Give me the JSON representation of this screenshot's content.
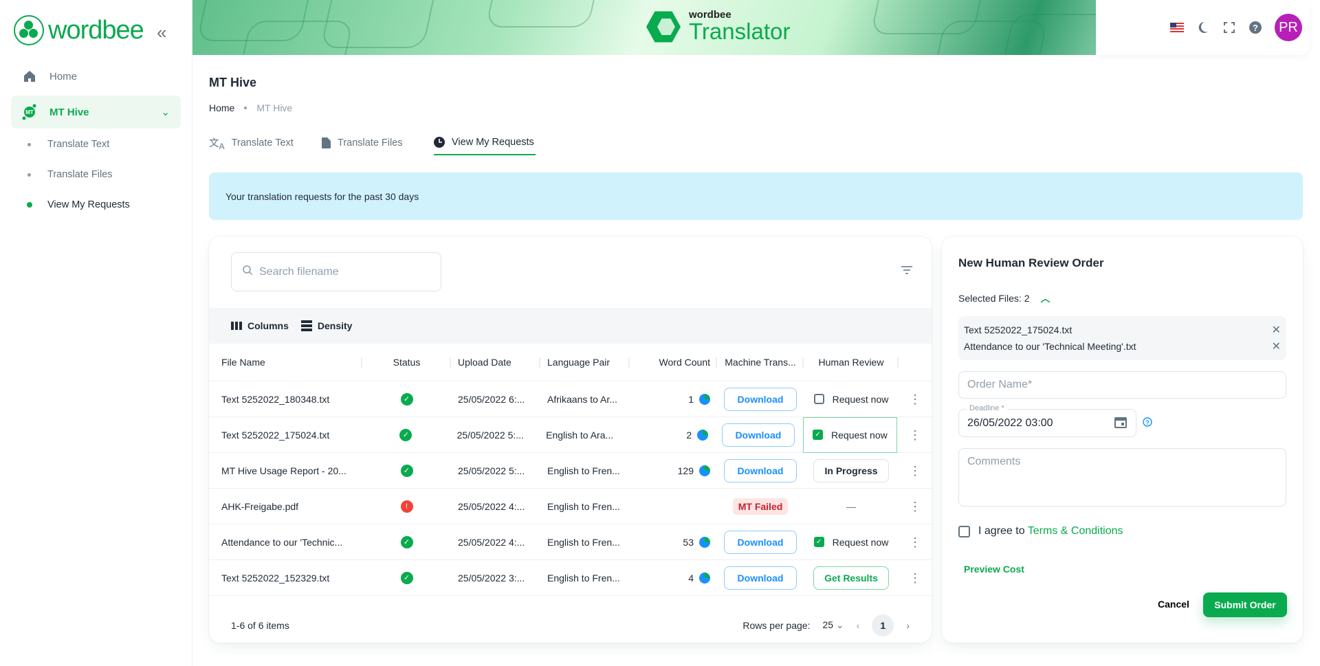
{
  "app": {
    "logo_text": "wordbee",
    "logo_tm": "TM",
    "brand_small": "wordbee",
    "brand_title": "Translator",
    "avatar_initials": "PR",
    "accent": "#0aaa4f"
  },
  "sidebar": {
    "items": [
      {
        "label": "Home",
        "icon": "home-icon"
      },
      {
        "label": "MT Hive",
        "icon": "mt-hive-icon"
      }
    ],
    "subitems": [
      {
        "label": "Translate Text"
      },
      {
        "label": "Translate Files"
      },
      {
        "label": "View My Requests",
        "active": true
      }
    ]
  },
  "page": {
    "title": "MT Hive",
    "breadcrumb": [
      "Home",
      "MT Hive"
    ],
    "tabs": [
      {
        "label": "Translate Text"
      },
      {
        "label": "Translate Files"
      },
      {
        "label": "View My Requests",
        "active": true
      }
    ],
    "info": "Your translation requests for the past 30 days"
  },
  "table": {
    "search_placeholder": "Search filename",
    "columns_label": "Columns",
    "density_label": "Density",
    "headers": [
      "File Name",
      "Status",
      "Upload Date",
      "Language Pair",
      "Word Count",
      "Machine Trans...",
      "Human Review"
    ],
    "rows": [
      {
        "file": "Text 5252022_180348.txt",
        "status": "ok",
        "date": "25/05/2022 6:...",
        "lang": "Afrikaans to Ar...",
        "words": "1",
        "mt": "Download",
        "hr": "Request now",
        "hr_checked": false
      },
      {
        "file": "Text 5252022_175024.txt",
        "status": "ok",
        "date": "25/05/2022 5:...",
        "lang": "English to Ara...",
        "words": "2",
        "mt": "Download",
        "hr": "Request now",
        "hr_checked": true
      },
      {
        "file": "MT Hive Usage Report - 20...",
        "status": "ok",
        "date": "25/05/2022 5:...",
        "lang": "English to Fren...",
        "words": "129",
        "mt": "Download",
        "hr": "In Progress"
      },
      {
        "file": "AHK-Freigabe.pdf",
        "status": "error",
        "date": "25/05/2022 4:...",
        "lang": "English to Fren...",
        "words": "",
        "mt": "MT Failed",
        "hr": "—"
      },
      {
        "file": "Attendance to our 'Technic...",
        "status": "ok",
        "date": "25/05/2022 4:...",
        "lang": "English to Fren...",
        "words": "53",
        "mt": "Download",
        "hr": "Request now",
        "hr_checked": true
      },
      {
        "file": "Text 5252022_152329.txt",
        "status": "ok",
        "date": "25/05/2022 3:...",
        "lang": "English to Fren...",
        "words": "4",
        "mt": "Download",
        "hr": "Get Results"
      }
    ],
    "range": "1-6 of 6 items",
    "rows_per_page_label": "Rows per page:",
    "rows_per_page": "25",
    "page": "1"
  },
  "order": {
    "title": "New Human Review Order",
    "selected_label": "Selected Files: 2",
    "files": [
      "Text 5252022_175024.txt",
      "Attendance to our 'Technical Meeting'.txt"
    ],
    "order_name_placeholder": "Order Name*",
    "deadline_label": "Deadline *",
    "deadline_value": "26/05/2022 03:00",
    "comments_placeholder": "Comments",
    "agree_text": "I agree to",
    "terms_link": "Terms & Conditions",
    "preview_cost": "Preview Cost",
    "cancel": "Cancel",
    "submit": "Submit Order"
  }
}
